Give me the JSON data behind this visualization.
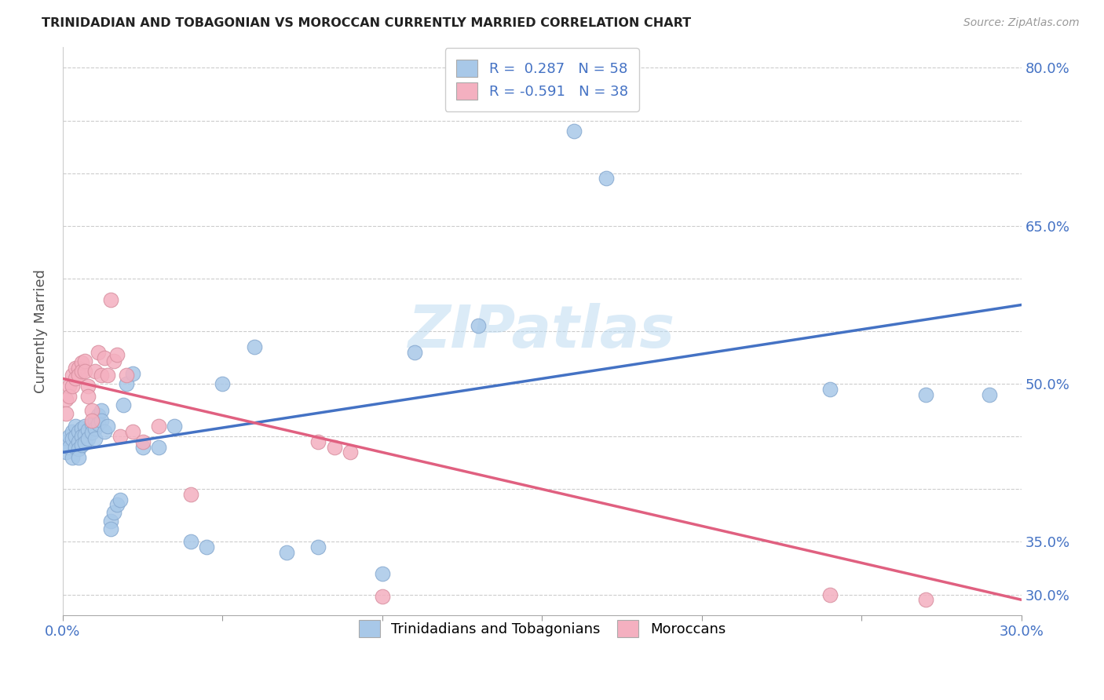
{
  "title": "TRINIDADIAN AND TOBAGONIAN VS MOROCCAN CURRENTLY MARRIED CORRELATION CHART",
  "source": "Source: ZipAtlas.com",
  "ylabel": "Currently Married",
  "x_min": 0.0,
  "x_max": 0.3,
  "y_min": 0.28,
  "y_max": 0.82,
  "x_ticks": [
    0.0,
    0.05,
    0.1,
    0.15,
    0.2,
    0.25,
    0.3
  ],
  "x_tick_labels": [
    "0.0%",
    "",
    "",
    "",
    "",
    "",
    "30.0%"
  ],
  "y_ticks": [
    0.3,
    0.35,
    0.4,
    0.45,
    0.5,
    0.55,
    0.6,
    0.65,
    0.7,
    0.75,
    0.8
  ],
  "y_tick_labels_right": [
    "30.0%",
    "35.0%",
    "",
    "",
    "50.0%",
    "",
    "",
    "65.0%",
    "",
    "",
    "80.0%"
  ],
  "trinidadian_color": "#a8c8e8",
  "moroccan_color": "#f4b0c0",
  "line_blue": "#4472c4",
  "line_pink": "#e06080",
  "watermark": "ZIPatlas",
  "legend_r1": "R =  0.287",
  "legend_n1": "N = 58",
  "legend_r2": "R = -0.591",
  "legend_n2": "N = 38",
  "tri_line_x": [
    0.0,
    0.3
  ],
  "tri_line_y": [
    0.435,
    0.575
  ],
  "mor_line_x": [
    0.0,
    0.3
  ],
  "mor_line_y": [
    0.505,
    0.295
  ],
  "trinidadian_x": [
    0.001,
    0.001,
    0.002,
    0.002,
    0.003,
    0.003,
    0.003,
    0.004,
    0.004,
    0.004,
    0.005,
    0.005,
    0.005,
    0.005,
    0.006,
    0.006,
    0.006,
    0.007,
    0.007,
    0.007,
    0.008,
    0.008,
    0.009,
    0.009,
    0.01,
    0.01,
    0.01,
    0.011,
    0.011,
    0.012,
    0.012,
    0.013,
    0.014,
    0.015,
    0.015,
    0.016,
    0.017,
    0.018,
    0.019,
    0.02,
    0.022,
    0.025,
    0.03,
    0.035,
    0.04,
    0.045,
    0.05,
    0.06,
    0.07,
    0.08,
    0.1,
    0.11,
    0.13,
    0.16,
    0.17,
    0.24,
    0.27,
    0.29
  ],
  "trinidadian_y": [
    0.445,
    0.435,
    0.45,
    0.44,
    0.455,
    0.448,
    0.43,
    0.46,
    0.45,
    0.44,
    0.455,
    0.445,
    0.438,
    0.43,
    0.458,
    0.45,
    0.442,
    0.46,
    0.452,
    0.444,
    0.456,
    0.448,
    0.462,
    0.454,
    0.465,
    0.458,
    0.448,
    0.47,
    0.462,
    0.475,
    0.465,
    0.455,
    0.46,
    0.37,
    0.362,
    0.378,
    0.385,
    0.39,
    0.48,
    0.5,
    0.51,
    0.44,
    0.44,
    0.46,
    0.35,
    0.345,
    0.5,
    0.535,
    0.34,
    0.345,
    0.32,
    0.53,
    0.555,
    0.74,
    0.695,
    0.495,
    0.49,
    0.49
  ],
  "moroccan_x": [
    0.001,
    0.001,
    0.002,
    0.002,
    0.003,
    0.003,
    0.004,
    0.004,
    0.005,
    0.005,
    0.006,
    0.006,
    0.007,
    0.007,
    0.008,
    0.008,
    0.009,
    0.009,
    0.01,
    0.011,
    0.012,
    0.013,
    0.014,
    0.015,
    0.016,
    0.017,
    0.018,
    0.02,
    0.022,
    0.025,
    0.03,
    0.04,
    0.08,
    0.085,
    0.09,
    0.1,
    0.24,
    0.27
  ],
  "moroccan_y": [
    0.485,
    0.472,
    0.498,
    0.488,
    0.508,
    0.498,
    0.515,
    0.505,
    0.515,
    0.508,
    0.52,
    0.512,
    0.522,
    0.512,
    0.498,
    0.488,
    0.475,
    0.465,
    0.512,
    0.53,
    0.508,
    0.525,
    0.508,
    0.58,
    0.522,
    0.528,
    0.45,
    0.508,
    0.455,
    0.445,
    0.46,
    0.395,
    0.445,
    0.44,
    0.435,
    0.298,
    0.3,
    0.295
  ]
}
